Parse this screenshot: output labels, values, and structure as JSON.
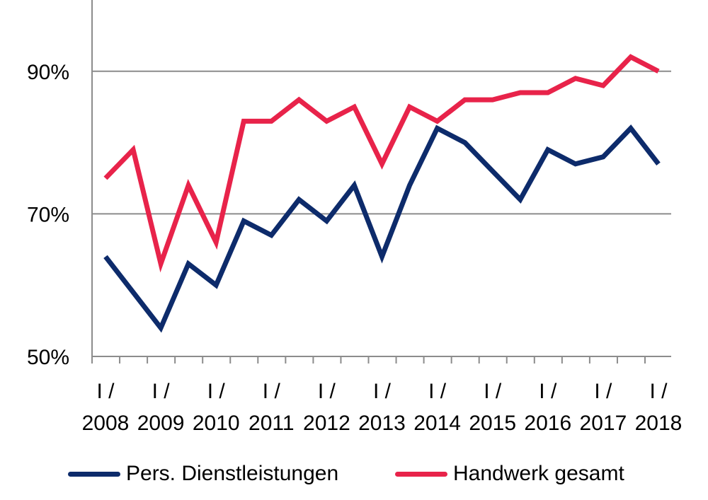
{
  "chart_data": {
    "type": "line",
    "title": "",
    "xlabel": "",
    "ylabel": "",
    "ylim": [
      50,
      100
    ],
    "yticks": [
      50,
      70,
      90
    ],
    "ytick_labels": [
      "50%",
      "70%",
      "90%"
    ],
    "grid": "horizontal",
    "legend_position": "bottom",
    "xtick_labels": [
      {
        "top": "I /",
        "bottom": "2008"
      },
      {
        "top": "I /",
        "bottom": "2009"
      },
      {
        "top": "I /",
        "bottom": "2010"
      },
      {
        "top": "I /",
        "bottom": "2011"
      },
      {
        "top": "I /",
        "bottom": "2012"
      },
      {
        "top": "I /",
        "bottom": "2013"
      },
      {
        "top": "I /",
        "bottom": "2014"
      },
      {
        "top": "I /",
        "bottom": "2015"
      },
      {
        "top": "I /",
        "bottom": "2016"
      },
      {
        "top": "I /",
        "bottom": "2017"
      },
      {
        "top": "I /",
        "bottom": "2018"
      }
    ],
    "series": [
      {
        "name": "Pers. Dienstleistungen",
        "color": "#0d2b6b",
        "values": [
          64,
          59,
          54,
          63,
          60,
          69,
          67,
          72,
          69,
          74,
          64,
          74,
          82,
          80,
          76,
          72,
          79,
          77,
          78,
          82,
          77
        ]
      },
      {
        "name": "Handwerk gesamt",
        "color": "#e8234a",
        "values": [
          75,
          79,
          63,
          74,
          66,
          83,
          83,
          86,
          83,
          85,
          77,
          85,
          83,
          86,
          86,
          87,
          87,
          89,
          88,
          92,
          90
        ]
      }
    ]
  }
}
